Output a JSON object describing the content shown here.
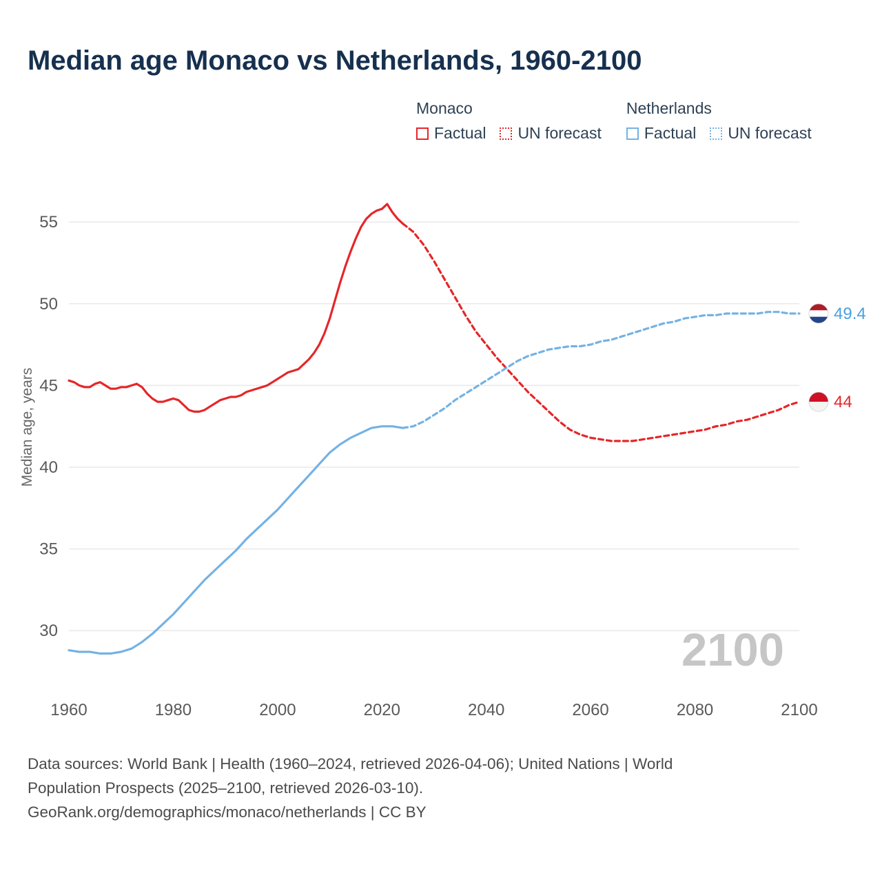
{
  "title": "Median age Monaco vs Netherlands, 1960-2100",
  "watermark": "2100",
  "ylabel": "Median age, years",
  "colors": {
    "monaco": "#e52629",
    "netherlands": "#74b2e4",
    "monaco_label": "#e52629",
    "netherlands_label": "#4aa0e0",
    "grid": "#e9e9e9",
    "title": "#16304f"
  },
  "legend": {
    "groups": [
      {
        "title": "Monaco",
        "items": [
          {
            "label": "Factual",
            "style": "solid",
            "color": "monaco"
          },
          {
            "label": "UN forecast",
            "style": "dashed",
            "color": "monaco"
          }
        ]
      },
      {
        "title": "Netherlands",
        "items": [
          {
            "label": "Factual",
            "style": "solid",
            "color": "netherlands"
          },
          {
            "label": "UN forecast",
            "style": "dashed",
            "color": "netherlands"
          }
        ]
      }
    ]
  },
  "end_labels": [
    {
      "flag": "netherlands",
      "value": "49.4",
      "value_num": 49.4,
      "color": "netherlands_label",
      "stripes": [
        "#AE1C28",
        "#ffffff",
        "#21468B"
      ]
    },
    {
      "flag": "monaco",
      "value": "44",
      "value_num": 44,
      "color": "monaco_label",
      "stripes": [
        "#CE1126",
        "#f4f5f0"
      ]
    }
  ],
  "footer": {
    "lines": [
      "Data sources: World Bank | Health (1960–2024, retrieved 2026-04-06); United Nations | World",
      "Population Prospects (2025–2100, retrieved 2026-03-10).",
      "GeoRank.org/demographics/monaco/netherlands | CC BY"
    ]
  },
  "chart_data": {
    "type": "line",
    "title": "Median age Monaco vs Netherlands, 1960-2100",
    "xlabel": "",
    "ylabel": "Median age, years",
    "xlim": [
      1960,
      2100
    ],
    "ylim": [
      28,
      57
    ],
    "xticks": [
      1960,
      1980,
      2000,
      2020,
      2040,
      2060,
      2080,
      2100
    ],
    "yticks": [
      30,
      35,
      40,
      45,
      50,
      55
    ],
    "grid": "horizontal",
    "legend_position": "top-right",
    "series": [
      {
        "id": "monaco-factual",
        "name": "Monaco Factual",
        "color": "monaco",
        "style": "solid",
        "points": [
          [
            1960,
            45.3
          ],
          [
            1961,
            45.2
          ],
          [
            1962,
            45.0
          ],
          [
            1963,
            44.9
          ],
          [
            1964,
            44.9
          ],
          [
            1965,
            45.1
          ],
          [
            1966,
            45.2
          ],
          [
            1967,
            45.0
          ],
          [
            1968,
            44.8
          ],
          [
            1969,
            44.8
          ],
          [
            1970,
            44.9
          ],
          [
            1971,
            44.9
          ],
          [
            1972,
            45.0
          ],
          [
            1973,
            45.1
          ],
          [
            1974,
            44.9
          ],
          [
            1975,
            44.5
          ],
          [
            1976,
            44.2
          ],
          [
            1977,
            44.0
          ],
          [
            1978,
            44.0
          ],
          [
            1979,
            44.1
          ],
          [
            1980,
            44.2
          ],
          [
            1981,
            44.1
          ],
          [
            1982,
            43.8
          ],
          [
            1983,
            43.5
          ],
          [
            1984,
            43.4
          ],
          [
            1985,
            43.4
          ],
          [
            1986,
            43.5
          ],
          [
            1987,
            43.7
          ],
          [
            1988,
            43.9
          ],
          [
            1989,
            44.1
          ],
          [
            1990,
            44.2
          ],
          [
            1991,
            44.3
          ],
          [
            1992,
            44.3
          ],
          [
            1993,
            44.4
          ],
          [
            1994,
            44.6
          ],
          [
            1995,
            44.7
          ],
          [
            1996,
            44.8
          ],
          [
            1997,
            44.9
          ],
          [
            1998,
            45.0
          ],
          [
            1999,
            45.2
          ],
          [
            2000,
            45.4
          ],
          [
            2001,
            45.6
          ],
          [
            2002,
            45.8
          ],
          [
            2003,
            45.9
          ],
          [
            2004,
            46.0
          ],
          [
            2005,
            46.3
          ],
          [
            2006,
            46.6
          ],
          [
            2007,
            47.0
          ],
          [
            2008,
            47.5
          ],
          [
            2009,
            48.2
          ],
          [
            2010,
            49.1
          ],
          [
            2011,
            50.2
          ],
          [
            2012,
            51.3
          ],
          [
            2013,
            52.3
          ],
          [
            2014,
            53.2
          ],
          [
            2015,
            54.0
          ],
          [
            2016,
            54.7
          ],
          [
            2017,
            55.2
          ],
          [
            2018,
            55.5
          ],
          [
            2019,
            55.7
          ],
          [
            2020,
            55.8
          ],
          [
            2021,
            56.1
          ],
          [
            2022,
            55.6
          ],
          [
            2023,
            55.2
          ],
          [
            2024,
            54.9
          ]
        ]
      },
      {
        "id": "monaco-forecast",
        "name": "Monaco UN forecast",
        "color": "monaco",
        "style": "dashed",
        "points": [
          [
            2024,
            54.9
          ],
          [
            2026,
            54.4
          ],
          [
            2028,
            53.6
          ],
          [
            2030,
            52.6
          ],
          [
            2032,
            51.5
          ],
          [
            2034,
            50.4
          ],
          [
            2036,
            49.3
          ],
          [
            2038,
            48.3
          ],
          [
            2040,
            47.5
          ],
          [
            2042,
            46.7
          ],
          [
            2044,
            46.0
          ],
          [
            2046,
            45.3
          ],
          [
            2048,
            44.6
          ],
          [
            2050,
            44.0
          ],
          [
            2052,
            43.4
          ],
          [
            2054,
            42.8
          ],
          [
            2056,
            42.3
          ],
          [
            2058,
            42.0
          ],
          [
            2060,
            41.8
          ],
          [
            2062,
            41.7
          ],
          [
            2064,
            41.6
          ],
          [
            2066,
            41.6
          ],
          [
            2068,
            41.6
          ],
          [
            2070,
            41.7
          ],
          [
            2072,
            41.8
          ],
          [
            2074,
            41.9
          ],
          [
            2076,
            42.0
          ],
          [
            2078,
            42.1
          ],
          [
            2080,
            42.2
          ],
          [
            2082,
            42.3
          ],
          [
            2084,
            42.5
          ],
          [
            2086,
            42.6
          ],
          [
            2088,
            42.8
          ],
          [
            2090,
            42.9
          ],
          [
            2092,
            43.1
          ],
          [
            2094,
            43.3
          ],
          [
            2096,
            43.5
          ],
          [
            2098,
            43.8
          ],
          [
            2100,
            44.0
          ]
        ]
      },
      {
        "id": "netherlands-factual",
        "name": "Netherlands Factual",
        "color": "netherlands",
        "style": "solid",
        "points": [
          [
            1960,
            28.8
          ],
          [
            1962,
            28.7
          ],
          [
            1964,
            28.7
          ],
          [
            1966,
            28.6
          ],
          [
            1968,
            28.6
          ],
          [
            1970,
            28.7
          ],
          [
            1972,
            28.9
          ],
          [
            1974,
            29.3
          ],
          [
            1976,
            29.8
          ],
          [
            1978,
            30.4
          ],
          [
            1980,
            31.0
          ],
          [
            1982,
            31.7
          ],
          [
            1984,
            32.4
          ],
          [
            1986,
            33.1
          ],
          [
            1988,
            33.7
          ],
          [
            1990,
            34.3
          ],
          [
            1992,
            34.9
          ],
          [
            1994,
            35.6
          ],
          [
            1996,
            36.2
          ],
          [
            1998,
            36.8
          ],
          [
            2000,
            37.4
          ],
          [
            2002,
            38.1
          ],
          [
            2004,
            38.8
          ],
          [
            2006,
            39.5
          ],
          [
            2008,
            40.2
          ],
          [
            2010,
            40.9
          ],
          [
            2012,
            41.4
          ],
          [
            2014,
            41.8
          ],
          [
            2016,
            42.1
          ],
          [
            2018,
            42.4
          ],
          [
            2020,
            42.5
          ],
          [
            2022,
            42.5
          ],
          [
            2024,
            42.4
          ]
        ]
      },
      {
        "id": "netherlands-forecast",
        "name": "Netherlands UN forecast",
        "color": "netherlands",
        "style": "dashed",
        "points": [
          [
            2024,
            42.4
          ],
          [
            2026,
            42.5
          ],
          [
            2028,
            42.8
          ],
          [
            2030,
            43.2
          ],
          [
            2032,
            43.6
          ],
          [
            2034,
            44.1
          ],
          [
            2036,
            44.5
          ],
          [
            2038,
            44.9
          ],
          [
            2040,
            45.3
          ],
          [
            2042,
            45.7
          ],
          [
            2044,
            46.1
          ],
          [
            2046,
            46.5
          ],
          [
            2048,
            46.8
          ],
          [
            2050,
            47.0
          ],
          [
            2052,
            47.2
          ],
          [
            2054,
            47.3
          ],
          [
            2056,
            47.4
          ],
          [
            2058,
            47.4
          ],
          [
            2060,
            47.5
          ],
          [
            2062,
            47.7
          ],
          [
            2064,
            47.8
          ],
          [
            2066,
            48.0
          ],
          [
            2068,
            48.2
          ],
          [
            2070,
            48.4
          ],
          [
            2072,
            48.6
          ],
          [
            2074,
            48.8
          ],
          [
            2076,
            48.9
          ],
          [
            2078,
            49.1
          ],
          [
            2080,
            49.2
          ],
          [
            2082,
            49.3
          ],
          [
            2084,
            49.3
          ],
          [
            2086,
            49.4
          ],
          [
            2088,
            49.4
          ],
          [
            2090,
            49.4
          ],
          [
            2092,
            49.4
          ],
          [
            2094,
            49.5
          ],
          [
            2096,
            49.5
          ],
          [
            2098,
            49.4
          ],
          [
            2100,
            49.4
          ]
        ]
      }
    ]
  }
}
